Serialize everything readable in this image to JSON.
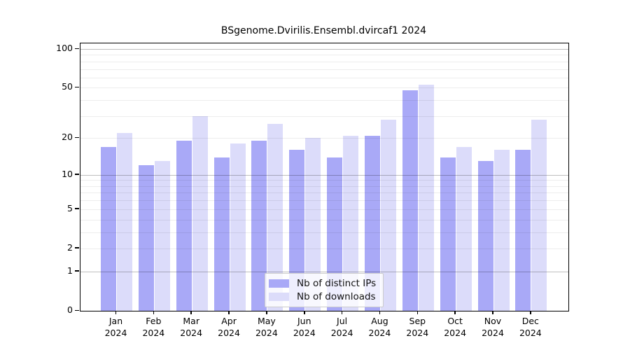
{
  "title": "BSgenome.Dvirilis.Ensembl.dvircaf1 2024",
  "colors": {
    "distinct_ips": "#a9a9f7",
    "downloads": "#dcdcfa",
    "axis": "#000000"
  },
  "legend": {
    "items": [
      {
        "label": "Nb of distinct IPs",
        "series": "distinct_ips"
      },
      {
        "label": "Nb of downloads",
        "series": "downloads"
      }
    ]
  },
  "chart_data": {
    "type": "bar",
    "scale": "log1p",
    "title": "BSgenome.Dvirilis.Ensembl.dvircaf1 2024",
    "categories": [
      "Jan",
      "Feb",
      "Mar",
      "Apr",
      "May",
      "Jun",
      "Jul",
      "Aug",
      "Sep",
      "Oct",
      "Nov",
      "Dec"
    ],
    "year_label": "2024",
    "series": [
      {
        "name": "Nb of distinct IPs",
        "color_key": "distinct_ips",
        "values": [
          17,
          12,
          19,
          14,
          19,
          16,
          14,
          21,
          48,
          14,
          13,
          16
        ]
      },
      {
        "name": "Nb of downloads",
        "color_key": "downloads",
        "values": [
          22,
          13,
          30,
          18,
          26,
          20,
          21,
          28,
          53,
          17,
          16,
          28
        ]
      }
    ],
    "yticks": [
      0,
      1,
      2,
      5,
      10,
      20,
      50,
      100
    ],
    "ylim": [
      0,
      110
    ],
    "grid": {
      "major": [
        1,
        10,
        100
      ],
      "minor": [
        2,
        3,
        4,
        5,
        6,
        7,
        8,
        9,
        20,
        30,
        40,
        50,
        60,
        70,
        80,
        90
      ]
    },
    "legend_position": "bottom-center",
    "xlabel": "",
    "ylabel": ""
  }
}
